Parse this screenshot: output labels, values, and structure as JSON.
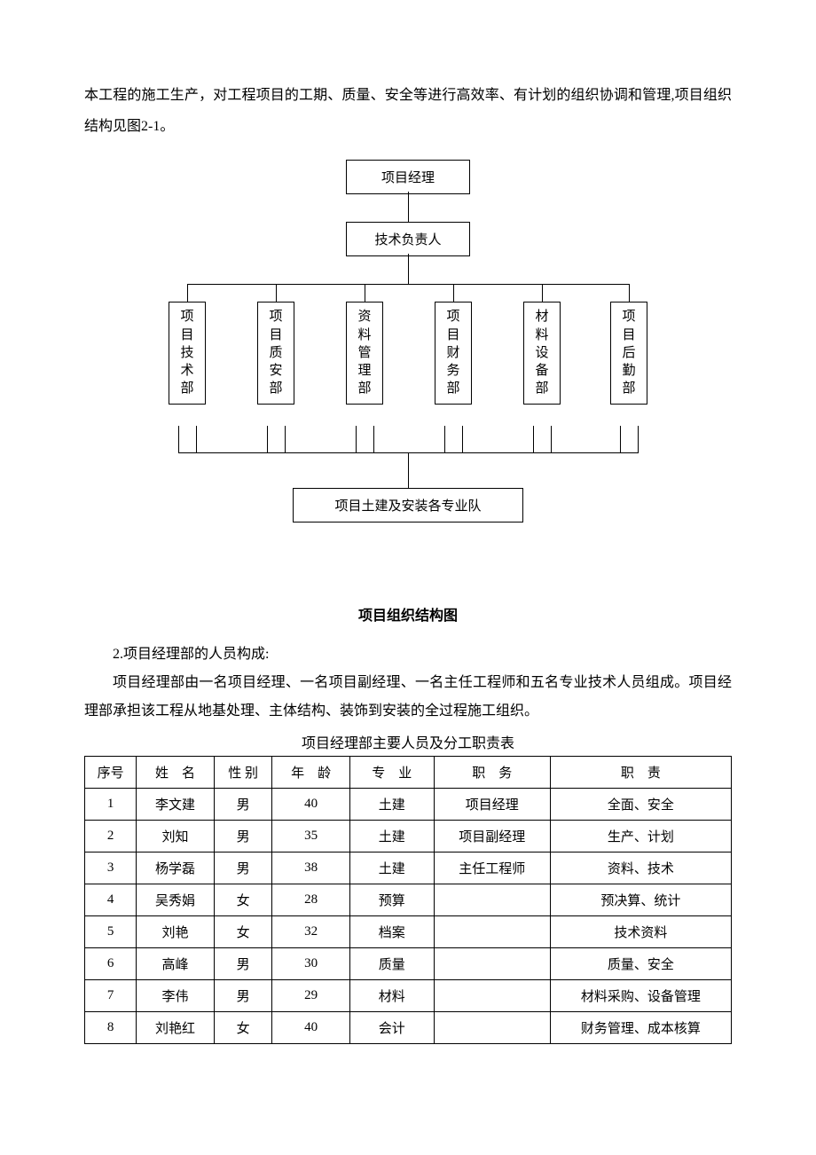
{
  "intro_paragraph": "本工程的施工生产，对工程项目的工期、质量、安全等进行高效率、有计划的组织协调和管理,项目组织结构见图2-1。",
  "orgchart": {
    "top": "项目经理",
    "mid": "技术负责人",
    "departments": [
      "项目技术部",
      "项目质安部",
      "资料管理部",
      "项目财务部",
      "材料设备部",
      "项目后勤部"
    ],
    "bottom": "项目土建及安装各专业队",
    "box_border_color": "#000000",
    "line_color": "#000000",
    "background_color": "#ffffff",
    "font_size_pt": 11,
    "top_box_w": 140,
    "top_box_h": 36,
    "mid_box_w": 140,
    "mid_box_h": 36,
    "dept_box_w": 42,
    "dept_box_h": 140,
    "dept_gap": 48,
    "stub_height": 30,
    "bottom_box_w": 260,
    "bottom_box_h": 36
  },
  "chart_caption": "项目组织结构图",
  "section_heading": "2.项目经理部的人员构成:",
  "body_1": "项目经理部由一名项目经理、一名项目副经理、一名主任工程师和五名专业技术人员组成。项目经理部承担该工程从地基处理、主体结构、装饰到安装的全过程施工组织。",
  "table_caption": "项目经理部主要人员及分工职责表",
  "table": {
    "columns": [
      "序号",
      "姓　名",
      "性 别",
      "年　龄",
      "专　业",
      "职　务",
      "职　责"
    ],
    "col_widths_pct": [
      8,
      12,
      9,
      12,
      13,
      18,
      28
    ],
    "rows": [
      [
        "1",
        "李文建",
        "男",
        "40",
        "土建",
        "项目经理",
        "全面、安全"
      ],
      [
        "2",
        "刘知",
        "男",
        "35",
        "土建",
        "项目副经理",
        "生产、计划"
      ],
      [
        "3",
        "杨学磊",
        "男",
        "38",
        "土建",
        "主任工程师",
        "资料、技术"
      ],
      [
        "4",
        "吴秀娟",
        "女",
        "28",
        "预算",
        "",
        "预决算、统计"
      ],
      [
        "5",
        "刘艳",
        "女",
        "32",
        "档案",
        "",
        "技术资料"
      ],
      [
        "6",
        "高峰",
        "男",
        "30",
        "质量",
        "",
        "质量、安全"
      ],
      [
        "7",
        "李伟",
        "男",
        "29",
        "材料",
        "",
        "材料采购、设备管理"
      ],
      [
        "8",
        "刘艳红",
        "女",
        "40",
        "会计",
        "",
        "财务管理、成本核算"
      ]
    ],
    "border_color": "#000000",
    "font_size_pt": 11
  }
}
